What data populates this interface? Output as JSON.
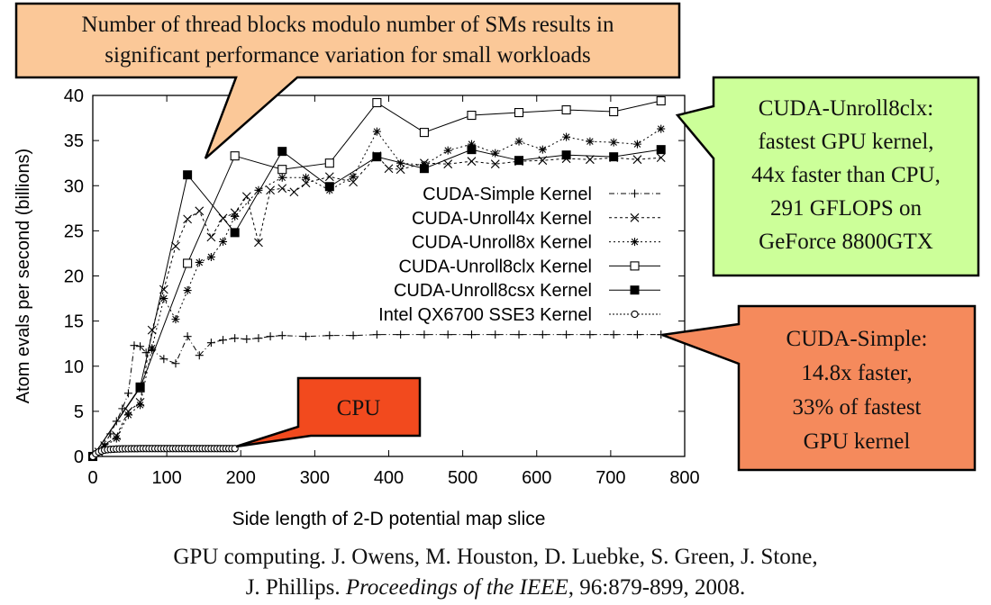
{
  "chart_data": {
    "type": "line",
    "xlabel": "Side length of 2-D potential map slice",
    "ylabel": "Atom evals per second (billions)",
    "xlim": [
      0,
      800
    ],
    "ylim": [
      0,
      40
    ],
    "xticks": [
      0,
      100,
      200,
      300,
      400,
      500,
      600,
      700,
      800
    ],
    "yticks": [
      0,
      5,
      10,
      15,
      20,
      25,
      30,
      35,
      40
    ],
    "grid": false,
    "legend_position": "center-right",
    "series": [
      {
        "name": "CUDA-Simple Kernel",
        "marker": "plus",
        "dash": "6,3,1,3",
        "x": [
          0,
          8,
          16,
          24,
          32,
          40,
          48,
          56,
          64,
          72,
          80,
          96,
          112,
          128,
          144,
          160,
          176,
          192,
          208,
          224,
          240,
          256,
          288,
          320,
          352,
          384,
          416,
          448,
          480,
          512,
          544,
          576,
          608,
          640,
          672,
          704,
          736,
          768
        ],
        "y": [
          0,
          0.6,
          1.4,
          2.5,
          3.9,
          5.3,
          7.0,
          12.3,
          12.2,
          11.5,
          11.8,
          10.8,
          10.3,
          13.3,
          11.2,
          12.6,
          12.9,
          13.1,
          13.0,
          13.1,
          13.3,
          13.4,
          13.3,
          13.4,
          13.4,
          13.5,
          13.5,
          13.5,
          13.5,
          13.5,
          13.5,
          13.5,
          13.5,
          13.5,
          13.5,
          13.5,
          13.5,
          13.5
        ]
      },
      {
        "name": "CUDA-Unroll4x Kernel",
        "marker": "x",
        "dash": "3,3",
        "x": [
          0,
          8,
          16,
          32,
          48,
          64,
          80,
          96,
          112,
          128,
          144,
          160,
          176,
          192,
          208,
          224,
          240,
          256,
          272,
          288,
          320,
          352,
          384,
          400,
          416,
          448,
          480,
          512,
          544,
          576,
          608,
          640,
          672,
          704,
          736,
          768
        ],
        "y": [
          0,
          0.5,
          1.2,
          2.3,
          5.0,
          6.0,
          14.0,
          18.5,
          23.3,
          26.3,
          27.2,
          24.3,
          26.4,
          27.0,
          28.8,
          23.7,
          29.5,
          29.7,
          29.3,
          30.3,
          31.0,
          30.4,
          33.3,
          31.9,
          31.8,
          32.5,
          32.4,
          32.7,
          32.4,
          32.7,
          32.8,
          33.0,
          32.9,
          33.1,
          32.9,
          33.1
        ]
      },
      {
        "name": "CUDA-Unroll8x Kernel",
        "marker": "star",
        "dash": "2,3",
        "x": [
          0,
          8,
          16,
          32,
          48,
          64,
          80,
          96,
          112,
          128,
          144,
          160,
          176,
          192,
          224,
          256,
          288,
          320,
          352,
          384,
          416,
          448,
          480,
          512,
          544,
          576,
          608,
          640,
          672,
          704,
          736,
          768
        ],
        "y": [
          0,
          0.5,
          1.1,
          2.0,
          4.6,
          5.7,
          12.0,
          17.5,
          15.2,
          18.4,
          21.5,
          22.1,
          23.8,
          26.6,
          29.5,
          30.9,
          30.9,
          29.5,
          31.0,
          36.0,
          32.5,
          32.3,
          33.9,
          34.6,
          33.6,
          34.9,
          34.0,
          35.4,
          34.9,
          34.8,
          34.6,
          36.3
        ]
      },
      {
        "name": "CUDA-Unroll8clx Kernel",
        "marker": "open-square",
        "dash": "",
        "x": [
          0,
          64,
          128,
          192,
          256,
          320,
          384,
          448,
          512,
          576,
          640,
          704,
          768
        ],
        "y": [
          0,
          7.6,
          21.4,
          33.3,
          31.8,
          32.5,
          39.2,
          35.9,
          37.8,
          38.1,
          38.4,
          38.2,
          39.4
        ]
      },
      {
        "name": "CUDA-Unroll8csx Kernel",
        "marker": "filled-square",
        "dash": "",
        "x": [
          0,
          64,
          128,
          192,
          256,
          320,
          384,
          448,
          512,
          576,
          640,
          704,
          768
        ],
        "y": [
          0,
          7.7,
          31.2,
          24.8,
          33.8,
          29.9,
          33.2,
          31.9,
          34.0,
          32.8,
          33.4,
          33.2,
          34.0
        ]
      },
      {
        "name": "Intel QX6700 SSE3 Kernel",
        "marker": "open-circle",
        "dash": "2,2",
        "x": [
          0,
          4,
          8,
          12,
          16,
          20,
          24,
          28,
          32,
          36,
          40,
          44,
          48,
          52,
          56,
          60,
          64,
          68,
          72,
          76,
          80,
          84,
          88,
          92,
          96,
          100,
          104,
          108,
          112,
          116,
          120,
          124,
          128,
          132,
          136,
          140,
          144,
          148,
          152,
          156,
          160,
          164,
          168,
          172,
          176,
          180,
          184,
          188,
          192
        ],
        "y": [
          0,
          0.3,
          0.5,
          0.6,
          0.7,
          0.75,
          0.78,
          0.8,
          0.82,
          0.83,
          0.84,
          0.85,
          0.85,
          0.86,
          0.86,
          0.86,
          0.87,
          0.87,
          0.87,
          0.87,
          0.87,
          0.87,
          0.87,
          0.87,
          0.87,
          0.87,
          0.87,
          0.87,
          0.87,
          0.87,
          0.87,
          0.87,
          0.87,
          0.87,
          0.87,
          0.87,
          0.87,
          0.87,
          0.87,
          0.87,
          0.87,
          0.87,
          0.87,
          0.87,
          0.87,
          0.87,
          0.87,
          0.87,
          0.87
        ]
      }
    ],
    "annotations": [
      {
        "id": "thread-blocks",
        "lines": [
          "Number of thread blocks modulo number of SMs results in",
          "significant performance variation for small workloads"
        ],
        "fill": "#fbc898"
      },
      {
        "id": "unroll8clx",
        "lines": [
          "CUDA-Unroll8clx:",
          "fastest GPU kernel,",
          "44x faster than CPU,",
          "291 GFLOPS on",
          "GeForce 8800GTX"
        ],
        "fill": "#ccff99"
      },
      {
        "id": "simple",
        "lines": [
          "CUDA-Simple:",
          "14.8x faster,",
          "33% of fastest",
          "GPU kernel"
        ],
        "fill": "#f58a5c"
      },
      {
        "id": "cpu",
        "lines": [
          "CPU"
        ],
        "fill": "#f24a1e"
      }
    ]
  },
  "citation": {
    "line1": "GPU computing.  J. Owens, M. Houston, D. Luebke, S. Green, J. Stone,",
    "line2_prefix": "J. Phillips. ",
    "line2_journal": "Proceedings of the IEEE",
    "line2_suffix": ", 96:879-899, 2008."
  }
}
